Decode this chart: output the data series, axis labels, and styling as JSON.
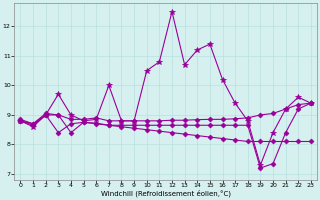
{
  "xlabel": "Windchill (Refroidissement éolien,°C)",
  "background_color": "#d6f0f0",
  "grid_color": "#b8e0e0",
  "line_color": "#990099",
  "xlim": [
    -0.5,
    23.5
  ],
  "ylim": [
    6.8,
    12.8
  ],
  "yticks": [
    7,
    8,
    9,
    10,
    11,
    12
  ],
  "xticks": [
    0,
    1,
    2,
    3,
    4,
    5,
    6,
    7,
    8,
    9,
    10,
    11,
    12,
    13,
    14,
    15,
    16,
    17,
    18,
    19,
    20,
    21,
    22,
    23
  ],
  "lines": [
    {
      "x": [
        0,
        1,
        2,
        3,
        4,
        5,
        6,
        7,
        8,
        9,
        10,
        11,
        12,
        13,
        14,
        15,
        16,
        17,
        18,
        19,
        20,
        21,
        22,
        23
      ],
      "y": [
        8.8,
        8.6,
        9.0,
        9.7,
        9.0,
        8.8,
        8.85,
        10.0,
        8.8,
        8.8,
        10.5,
        10.8,
        12.5,
        10.7,
        11.2,
        11.4,
        10.2,
        9.4,
        8.8,
        7.3,
        8.4,
        9.2,
        9.6,
        9.4
      ],
      "marker": "*",
      "markersize": 4
    },
    {
      "x": [
        0,
        1,
        2,
        3,
        4,
        5,
        6,
        7,
        8,
        9,
        10,
        11,
        12,
        13,
        14,
        15,
        16,
        17,
        18,
        19,
        20,
        21,
        22,
        23
      ],
      "y": [
        8.85,
        8.7,
        9.05,
        9.0,
        8.85,
        8.85,
        8.9,
        8.8,
        8.8,
        8.8,
        8.8,
        8.8,
        8.82,
        8.82,
        8.84,
        8.85,
        8.85,
        8.87,
        8.9,
        9.0,
        9.05,
        9.2,
        9.35,
        9.4
      ],
      "marker": "D",
      "markersize": 2.5
    },
    {
      "x": [
        0,
        1,
        2,
        3,
        4,
        5,
        6,
        7,
        8,
        9,
        10,
        11,
        12,
        13,
        14,
        15,
        16,
        17,
        18,
        19,
        20,
        21,
        22,
        23
      ],
      "y": [
        8.8,
        8.65,
        9.0,
        8.4,
        8.7,
        8.75,
        8.72,
        8.65,
        8.6,
        8.55,
        8.5,
        8.45,
        8.4,
        8.35,
        8.3,
        8.25,
        8.2,
        8.15,
        8.1,
        8.1,
        8.1,
        8.1,
        8.1,
        8.1
      ],
      "marker": "D",
      "markersize": 2.5
    },
    {
      "x": [
        0,
        1,
        2,
        3,
        4,
        5,
        6,
        7,
        8,
        9,
        10,
        11,
        12,
        13,
        14,
        15,
        16,
        17,
        18,
        19,
        20,
        21,
        22,
        23
      ],
      "y": [
        8.8,
        8.7,
        9.0,
        9.0,
        8.4,
        8.75,
        8.7,
        8.65,
        8.65,
        8.65,
        8.65,
        8.65,
        8.65,
        8.65,
        8.65,
        8.65,
        8.65,
        8.65,
        8.65,
        7.2,
        7.35,
        8.4,
        9.2,
        9.4
      ],
      "marker": "D",
      "markersize": 2.5
    }
  ]
}
